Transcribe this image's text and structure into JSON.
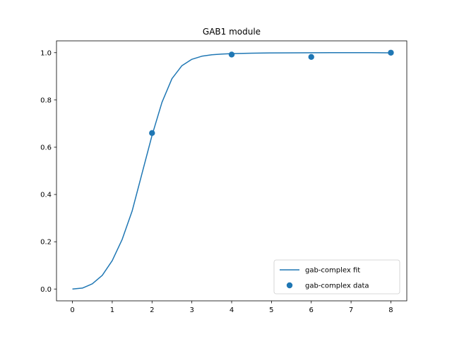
{
  "chart_data": {
    "type": "line",
    "title": "GAB1 module",
    "xlabel": "",
    "ylabel": "",
    "xlim": [
      -0.4,
      8.4
    ],
    "ylim": [
      -0.05,
      1.05
    ],
    "xticks": [
      0,
      1,
      2,
      3,
      4,
      5,
      6,
      7,
      8
    ],
    "yticks": [
      0.0,
      0.2,
      0.4,
      0.6,
      0.8,
      1.0
    ],
    "xtick_labels": [
      "0",
      "1",
      "2",
      "3",
      "4",
      "5",
      "6",
      "7",
      "8"
    ],
    "ytick_labels": [
      "0.0",
      "0.2",
      "0.4",
      "0.6",
      "0.8",
      "1.0"
    ],
    "grid": false,
    "legend_position": "lower-right",
    "series": [
      {
        "name": "gab-complex fit",
        "kind": "line",
        "color": "#1f77b4",
        "x": [
          0.0,
          0.25,
          0.5,
          0.75,
          1.0,
          1.25,
          1.5,
          1.75,
          2.0,
          2.25,
          2.5,
          2.75,
          3.0,
          3.25,
          3.5,
          3.75,
          4.0,
          4.5,
          5.0,
          5.5,
          6.0,
          6.5,
          7.0,
          7.5,
          8.0
        ],
        "y": [
          0.0,
          0.004,
          0.022,
          0.058,
          0.12,
          0.21,
          0.33,
          0.49,
          0.65,
          0.79,
          0.89,
          0.945,
          0.972,
          0.985,
          0.991,
          0.994,
          0.996,
          0.998,
          0.999,
          0.9995,
          0.9998,
          1.0,
          1.0,
          1.0,
          0.9995
        ]
      },
      {
        "name": "gab-complex data",
        "kind": "scatter",
        "color": "#1f77b4",
        "x": [
          2,
          4,
          6,
          8
        ],
        "y": [
          0.66,
          0.992,
          0.982,
          1.0
        ]
      }
    ]
  }
}
